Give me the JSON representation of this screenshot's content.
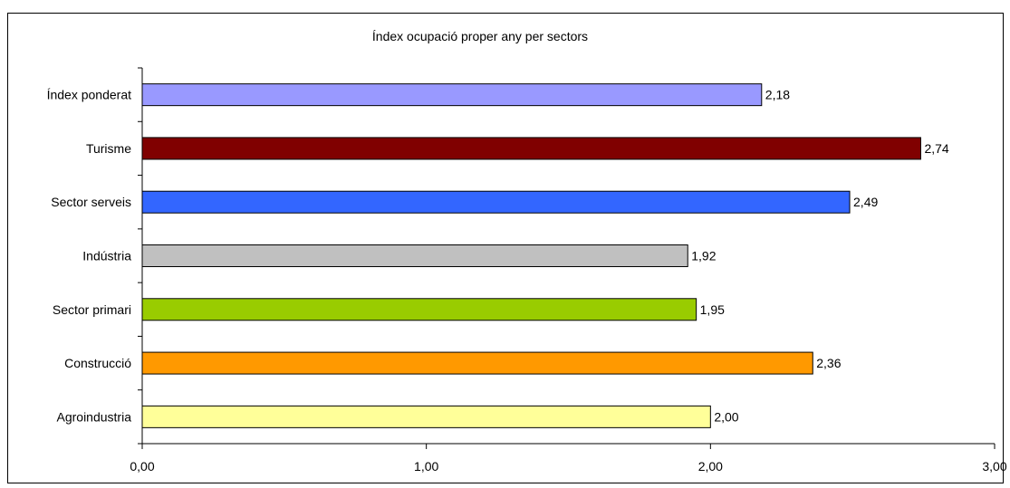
{
  "chart_data": {
    "type": "bar",
    "orientation": "horizontal",
    "title": "Índex ocupació proper any per sectors",
    "categories": [
      "Índex ponderat",
      "Turisme",
      "Sector serveis",
      "Indústria",
      "Sector primari",
      "Construcció",
      "Agroindustria"
    ],
    "values": [
      2.18,
      2.74,
      2.49,
      1.92,
      1.95,
      2.36,
      2.0
    ],
    "value_labels": [
      "2,18",
      "2,74",
      "2,49",
      "1,92",
      "1,95",
      "2,36",
      "2,00"
    ],
    "colors": [
      "#9999FF",
      "#800000",
      "#3366FF",
      "#C0C0C0",
      "#99CC00",
      "#FF9900",
      "#FFFF99"
    ],
    "xlim": [
      0,
      3
    ],
    "xticks": [
      0,
      1,
      2,
      3
    ],
    "xtick_labels": [
      "0,00",
      "1,00",
      "2,00",
      "3,00"
    ],
    "grid": false,
    "legend": "none"
  }
}
